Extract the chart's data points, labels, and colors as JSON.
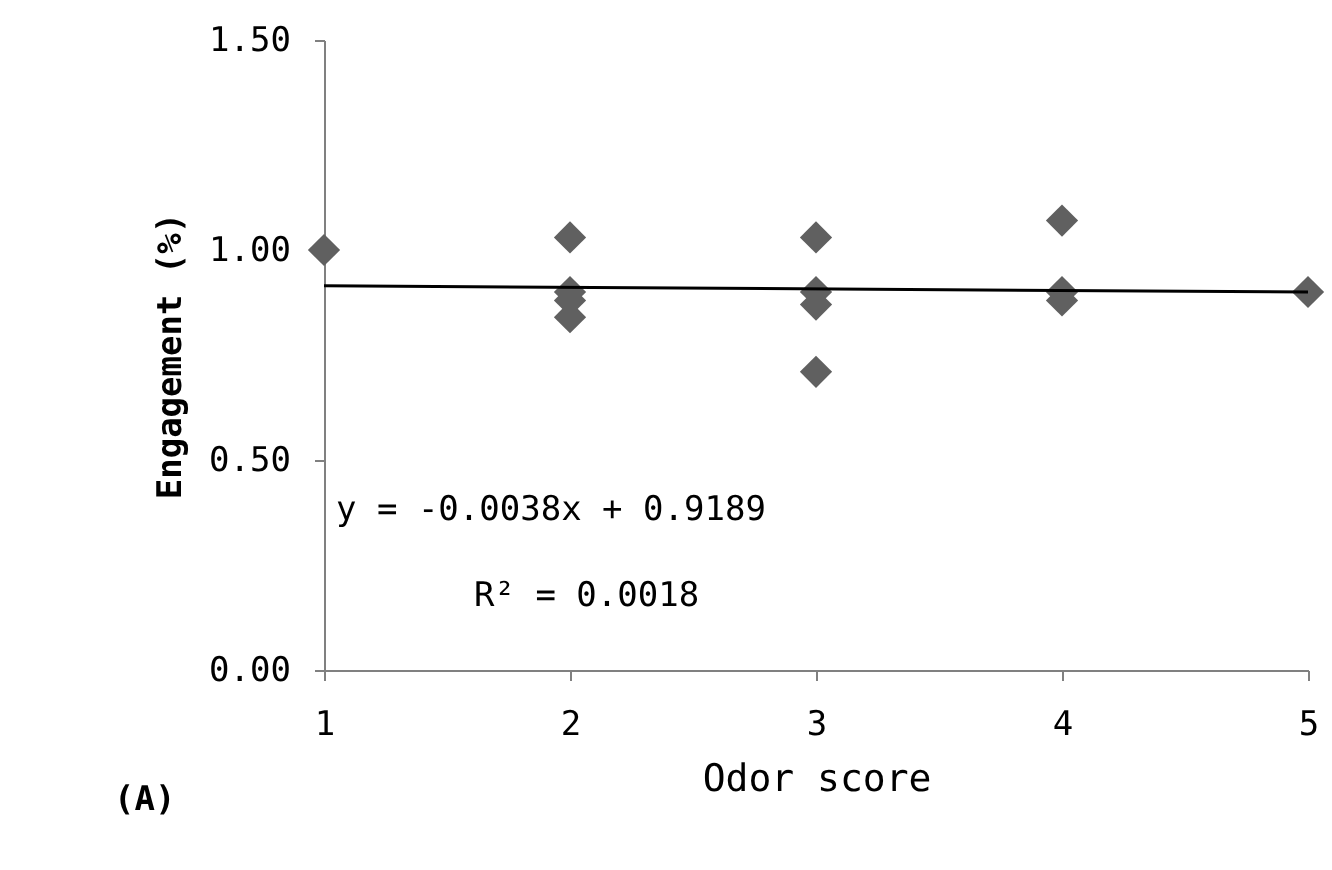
{
  "chart_data": {
    "type": "scatter",
    "xlabel": "Odor score",
    "ylabel": "Engagement (%)",
    "marker": "diamond",
    "grid": false,
    "xlim": [
      1,
      5
    ],
    "xticks": [
      1,
      2,
      3,
      4,
      5
    ],
    "ylim": [
      0,
      1.5
    ],
    "yticks": [
      {
        "value": 0,
        "label": "0.00"
      },
      {
        "value": 0.5,
        "label": "0.50"
      },
      {
        "value": 1,
        "label": "1.00"
      },
      {
        "value": 1.5,
        "label": "1.50"
      }
    ],
    "series": [
      {
        "color": "#606060",
        "x": [
          1,
          2,
          2,
          2,
          2,
          3,
          3,
          3,
          3,
          4,
          4,
          4,
          5
        ],
        "values": [
          1.0,
          1.03,
          0.9,
          0.88,
          0.84,
          1.03,
          0.9,
          0.87,
          0.71,
          1.07,
          0.9,
          0.88,
          0.9
        ]
      },
      {
        "type": "line",
        "color": "#000000",
        "marker": "none",
        "x": [
          1,
          5
        ],
        "values": [
          0.915,
          0.9
        ]
      }
    ],
    "annotations": [
      "y = -0.0038x + 0.9189",
      "R² = 0.0018",
      "(A)"
    ]
  }
}
